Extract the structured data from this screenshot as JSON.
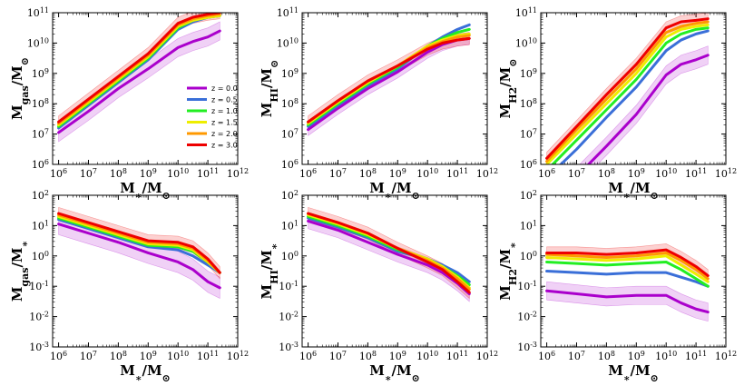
{
  "colors": {
    "z0": "#aa00cc",
    "z05": "#3a6fd8",
    "z1": "#22ee22",
    "z15": "#eeee00",
    "z2": "#ff9900",
    "z3": "#ee0000"
  },
  "chart_data": [
    {
      "type": "line",
      "panel": "mgas",
      "xlabel": "M∗/M⊙",
      "ylabel": "Mgas/M⊙",
      "x": [
        6,
        7,
        8,
        9,
        10,
        10.5,
        11,
        11.4
      ],
      "ylim_exp": [
        6,
        11
      ],
      "xlim_exp": [
        5.8,
        12
      ],
      "legend": {
        "placement": "center-right"
      },
      "series": [
        {
          "name": "z = 0.0",
          "color_key": "z0",
          "y": [
            7.05,
            7.75,
            8.5,
            9.15,
            9.85,
            10.05,
            10.2,
            10.4
          ],
          "band": 0.3
        },
        {
          "name": "z = 0.5",
          "color_key": "z05",
          "y": [
            7.2,
            7.95,
            8.7,
            9.45,
            10.45,
            10.7,
            10.85,
            10.9
          ]
        },
        {
          "name": "z = 1.0",
          "color_key": "z1",
          "y": [
            7.25,
            8.0,
            8.75,
            9.5,
            10.5,
            10.75,
            10.85,
            10.9
          ]
        },
        {
          "name": "z = 1.5",
          "color_key": "z15",
          "y": [
            7.3,
            8.05,
            8.8,
            9.55,
            10.55,
            10.75,
            10.85,
            10.9
          ]
        },
        {
          "name": "z = 2.0",
          "color_key": "z2",
          "y": [
            7.35,
            8.1,
            8.85,
            9.6,
            10.6,
            10.8,
            10.9,
            10.95
          ]
        },
        {
          "name": "z = 3.0",
          "color_key": "z3",
          "y": [
            7.4,
            8.15,
            8.9,
            9.65,
            10.65,
            10.85,
            10.95,
            11.0
          ],
          "band": 0.2
        }
      ]
    },
    {
      "type": "line",
      "panel": "mhi",
      "xlabel": "M∗/M⊙",
      "ylabel": "MHI/M⊙",
      "x": [
        6,
        7,
        8,
        9,
        10,
        10.5,
        11,
        11.4
      ],
      "ylim_exp": [
        6,
        11
      ],
      "xlim_exp": [
        5.8,
        12
      ],
      "series": [
        {
          "name": "z = 0.0",
          "color_key": "z0",
          "y": [
            7.15,
            7.85,
            8.5,
            9.05,
            9.7,
            9.95,
            10.1,
            10.15
          ],
          "band": 0.2
        },
        {
          "name": "z = 0.5",
          "color_key": "z05",
          "y": [
            7.25,
            7.95,
            8.6,
            9.15,
            9.9,
            10.2,
            10.45,
            10.6
          ]
        },
        {
          "name": "z = 1.0",
          "color_key": "z1",
          "y": [
            7.3,
            8.0,
            8.65,
            9.2,
            9.9,
            10.15,
            10.35,
            10.45
          ]
        },
        {
          "name": "z = 1.5",
          "color_key": "z15",
          "y": [
            7.35,
            8.05,
            8.7,
            9.25,
            9.9,
            10.1,
            10.25,
            10.3
          ]
        },
        {
          "name": "z = 2.0",
          "color_key": "z2",
          "y": [
            7.4,
            8.1,
            8.75,
            9.25,
            9.85,
            10.05,
            10.2,
            10.25
          ]
        },
        {
          "name": "z = 3.0",
          "color_key": "z3",
          "y": [
            7.4,
            8.1,
            8.75,
            9.25,
            9.8,
            10.0,
            10.1,
            10.15
          ],
          "band": 0.2
        }
      ]
    },
    {
      "type": "line",
      "panel": "mh2",
      "xlabel": "M∗/M⊙",
      "ylabel": "MH2/M⊙",
      "x": [
        6,
        7,
        8,
        9,
        10,
        10.5,
        11,
        11.4
      ],
      "ylim_exp": [
        6,
        11
      ],
      "xlim_exp": [
        5.8,
        12
      ],
      "series": [
        {
          "name": "z = 0.0",
          "color_key": "z0",
          "y": [
            4.85,
            5.6,
            6.6,
            7.65,
            8.95,
            9.3,
            9.45,
            9.6
          ],
          "band": 0.3
        },
        {
          "name": "z = 0.5",
          "color_key": "z05",
          "y": [
            5.55,
            6.5,
            7.55,
            8.55,
            9.75,
            10.1,
            10.3,
            10.4
          ]
        },
        {
          "name": "z = 1.0",
          "color_key": "z1",
          "y": [
            5.8,
            6.8,
            7.8,
            8.8,
            10.0,
            10.3,
            10.45,
            10.5
          ]
        },
        {
          "name": "z = 1.5",
          "color_key": "z15",
          "y": [
            6.0,
            7.0,
            8.0,
            9.0,
            10.2,
            10.45,
            10.55,
            10.6
          ]
        },
        {
          "name": "z = 2.0",
          "color_key": "z2",
          "y": [
            6.1,
            7.15,
            8.15,
            9.15,
            10.35,
            10.55,
            10.65,
            10.7
          ]
        },
        {
          "name": "z = 3.0",
          "color_key": "z3",
          "y": [
            6.2,
            7.25,
            8.3,
            9.3,
            10.5,
            10.7,
            10.75,
            10.8
          ],
          "band": 0.2
        }
      ]
    },
    {
      "type": "line",
      "panel": "fgas",
      "xlabel": "M∗/M⊙",
      "ylabel": "Mgas/M∗",
      "x": [
        6,
        7,
        8,
        9,
        10,
        10.5,
        11,
        11.4
      ],
      "ylim_exp": [
        -3,
        2
      ],
      "xlim_exp": [
        5.8,
        12
      ],
      "series": [
        {
          "name": "z = 0.0",
          "color_key": "z0",
          "y": [
            1.05,
            0.75,
            0.45,
            0.1,
            -0.2,
            -0.45,
            -0.85,
            -1.05
          ],
          "band": 0.35
        },
        {
          "name": "z = 0.5",
          "color_key": "z05",
          "y": [
            1.2,
            0.9,
            0.6,
            0.3,
            0.2,
            0.0,
            -0.3,
            -0.55
          ]
        },
        {
          "name": "z = 1.0",
          "color_key": "z1",
          "y": [
            1.25,
            0.95,
            0.65,
            0.35,
            0.3,
            0.15,
            -0.2,
            -0.55
          ]
        },
        {
          "name": "z = 1.5",
          "color_key": "z15",
          "y": [
            1.3,
            1.0,
            0.7,
            0.4,
            0.35,
            0.2,
            -0.2,
            -0.55
          ]
        },
        {
          "name": "z = 2.0",
          "color_key": "z2",
          "y": [
            1.35,
            1.05,
            0.75,
            0.45,
            0.4,
            0.25,
            -0.15,
            -0.55
          ]
        },
        {
          "name": "z = 3.0",
          "color_key": "z3",
          "y": [
            1.4,
            1.1,
            0.8,
            0.5,
            0.45,
            0.3,
            -0.1,
            -0.55
          ],
          "band": 0.2
        }
      ]
    },
    {
      "type": "line",
      "panel": "fhi",
      "xlabel": "M∗/M⊙",
      "ylabel": "MHI/M∗",
      "x": [
        6,
        7,
        8,
        9,
        10,
        10.5,
        11,
        11.4
      ],
      "ylim_exp": [
        -3,
        2
      ],
      "xlim_exp": [
        5.8,
        12
      ],
      "series": [
        {
          "name": "z = 0.0",
          "color_key": "z0",
          "y": [
            1.15,
            0.85,
            0.45,
            0.05,
            -0.3,
            -0.55,
            -0.9,
            -1.25
          ],
          "band": 0.25
        },
        {
          "name": "z = 0.5",
          "color_key": "z05",
          "y": [
            1.25,
            0.95,
            0.6,
            0.15,
            -0.1,
            -0.3,
            -0.55,
            -0.85
          ]
        },
        {
          "name": "z = 1.0",
          "color_key": "z1",
          "y": [
            1.3,
            1.0,
            0.65,
            0.2,
            -0.1,
            -0.35,
            -0.65,
            -0.95
          ]
        },
        {
          "name": "z = 1.5",
          "color_key": "z15",
          "y": [
            1.35,
            1.05,
            0.7,
            0.25,
            -0.1,
            -0.35,
            -0.7,
            -1.05
          ]
        },
        {
          "name": "z = 2.0",
          "color_key": "z2",
          "y": [
            1.4,
            1.1,
            0.75,
            0.25,
            -0.15,
            -0.4,
            -0.75,
            -1.1
          ]
        },
        {
          "name": "z = 3.0",
          "color_key": "z3",
          "y": [
            1.4,
            1.1,
            0.75,
            0.25,
            -0.2,
            -0.45,
            -0.85,
            -1.2
          ],
          "band": 0.2
        }
      ]
    },
    {
      "type": "line",
      "panel": "fh2",
      "xlabel": "M∗/M⊙",
      "ylabel": "MH2/M∗",
      "x": [
        6,
        7,
        8,
        9,
        10,
        10.5,
        11,
        11.4
      ],
      "ylim_exp": [
        -3,
        2
      ],
      "xlim_exp": [
        5.8,
        12
      ],
      "series": [
        {
          "name": "z = 0.0",
          "color_key": "z0",
          "y": [
            -1.15,
            -1.25,
            -1.35,
            -1.3,
            -1.3,
            -1.55,
            -1.75,
            -1.85
          ],
          "band": 0.3
        },
        {
          "name": "z = 0.5",
          "color_key": "z05",
          "y": [
            -0.5,
            -0.55,
            -0.6,
            -0.55,
            -0.55,
            -0.7,
            -0.85,
            -1.0
          ]
        },
        {
          "name": "z = 1.0",
          "color_key": "z1",
          "y": [
            -0.2,
            -0.25,
            -0.3,
            -0.25,
            -0.2,
            -0.45,
            -0.75,
            -1.0
          ]
        },
        {
          "name": "z = 1.5",
          "color_key": "z15",
          "y": [
            -0.05,
            -0.1,
            -0.15,
            -0.1,
            0.0,
            -0.3,
            -0.6,
            -0.85
          ]
        },
        {
          "name": "z = 2.0",
          "color_key": "z2",
          "y": [
            0.05,
            0.0,
            -0.05,
            0.0,
            0.1,
            -0.15,
            -0.45,
            -0.75
          ]
        },
        {
          "name": "z = 3.0",
          "color_key": "z3",
          "y": [
            0.1,
            0.1,
            0.05,
            0.1,
            0.2,
            -0.05,
            -0.35,
            -0.65
          ],
          "band": 0.2
        }
      ]
    }
  ]
}
